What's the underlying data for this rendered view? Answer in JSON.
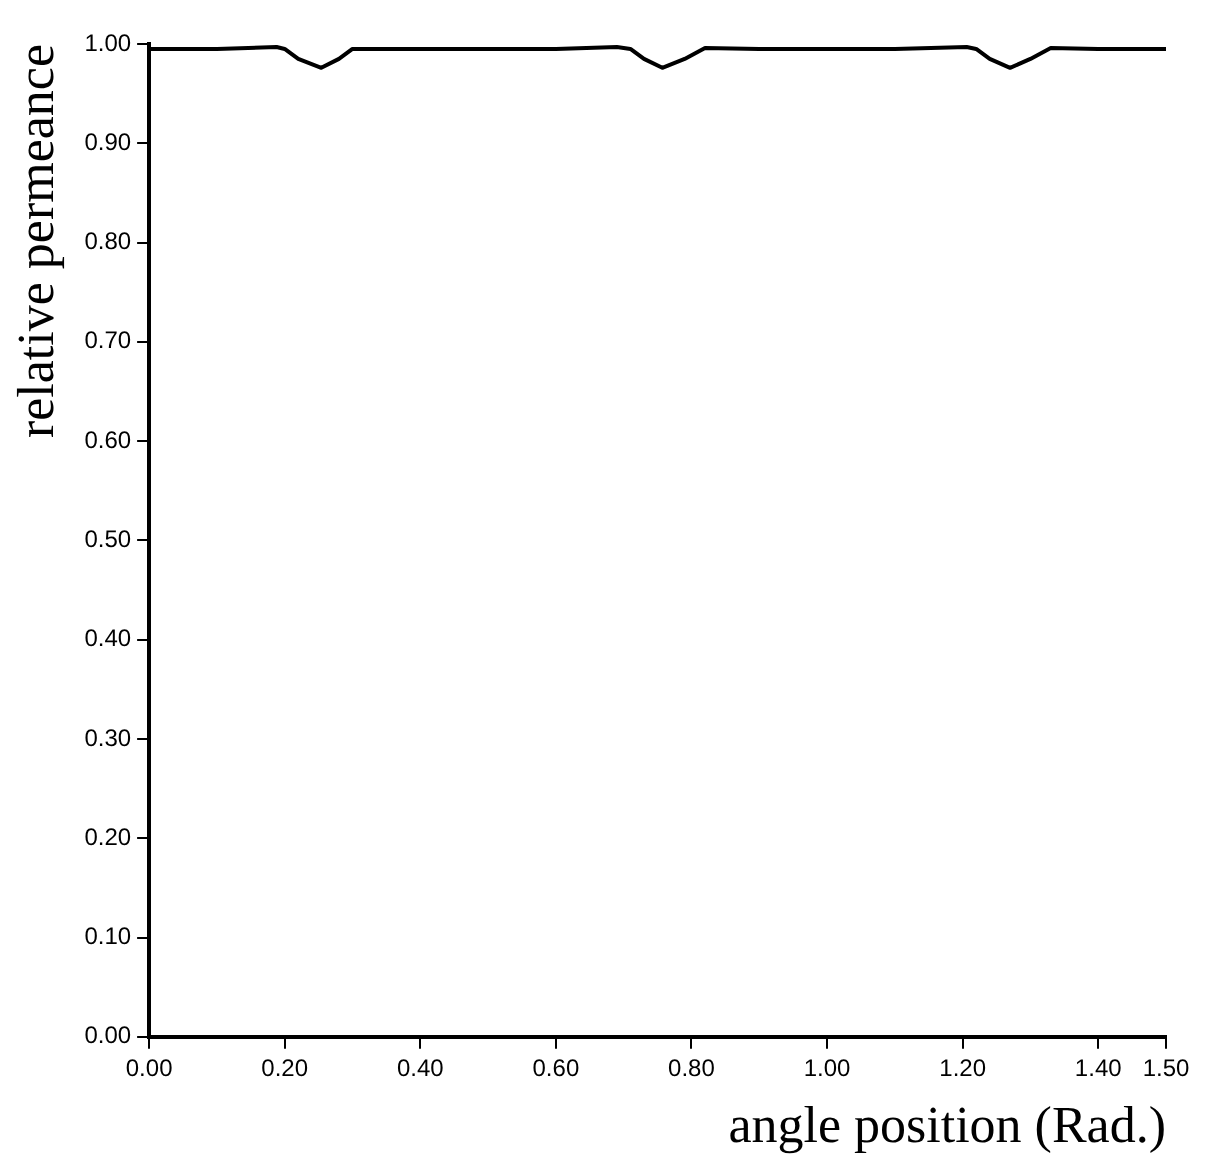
{
  "chart_data": {
    "type": "line",
    "xlabel": "angle position (Rad.)",
    "ylabel": "relative permeance",
    "x": [
      0,
      0.1,
      0.188,
      0.2,
      0.22,
      0.254,
      0.28,
      0.3,
      0.4,
      0.5,
      0.6,
      0.69,
      0.71,
      0.73,
      0.757,
      0.79,
      0.82,
      0.9,
      1.0,
      1.1,
      1.206,
      1.22,
      1.24,
      1.27,
      1.3,
      1.33,
      1.4,
      1.5
    ],
    "series": [
      {
        "color": "#000000",
        "values": [
          0.995,
          0.995,
          0.997,
          0.995,
          0.985,
          0.976,
          0.985,
          0.995,
          0.995,
          0.995,
          0.995,
          0.997,
          0.995,
          0.985,
          0.976,
          0.985,
          0.996,
          0.995,
          0.995,
          0.995,
          0.997,
          0.995,
          0.985,
          0.976,
          0.985,
          0.996,
          0.995,
          0.995
        ]
      }
    ],
    "xlim": [
      0,
      1.5
    ],
    "ylim": [
      0,
      1
    ],
    "xticks": [
      {
        "value": 0,
        "label": "0.00"
      },
      {
        "value": 0.2,
        "label": "0.20"
      },
      {
        "value": 0.4,
        "label": "0.40"
      },
      {
        "value": 0.6,
        "label": "0.60"
      },
      {
        "value": 0.8,
        "label": "0.80"
      },
      {
        "value": 1,
        "label": "1.00"
      },
      {
        "value": 1.2,
        "label": "1.20"
      },
      {
        "value": 1.4,
        "label": "1.40"
      },
      {
        "value": 1.5,
        "label": "1.50"
      }
    ],
    "yticks": [
      {
        "value": 0,
        "label": "0.00"
      },
      {
        "value": 0.1,
        "label": "0.10"
      },
      {
        "value": 0.2,
        "label": "0.20"
      },
      {
        "value": 0.3,
        "label": "0.30"
      },
      {
        "value": 0.4,
        "label": "0.40"
      },
      {
        "value": 0.5,
        "label": "0.50"
      },
      {
        "value": 0.6,
        "label": "0.60"
      },
      {
        "value": 0.7,
        "label": "0.70"
      },
      {
        "value": 0.8,
        "label": "0.80"
      },
      {
        "value": 0.9,
        "label": "0.90"
      },
      {
        "value": 1,
        "label": "1.00"
      }
    ],
    "grid": false,
    "legend": false,
    "marker": "none",
    "line_style": "solid"
  }
}
